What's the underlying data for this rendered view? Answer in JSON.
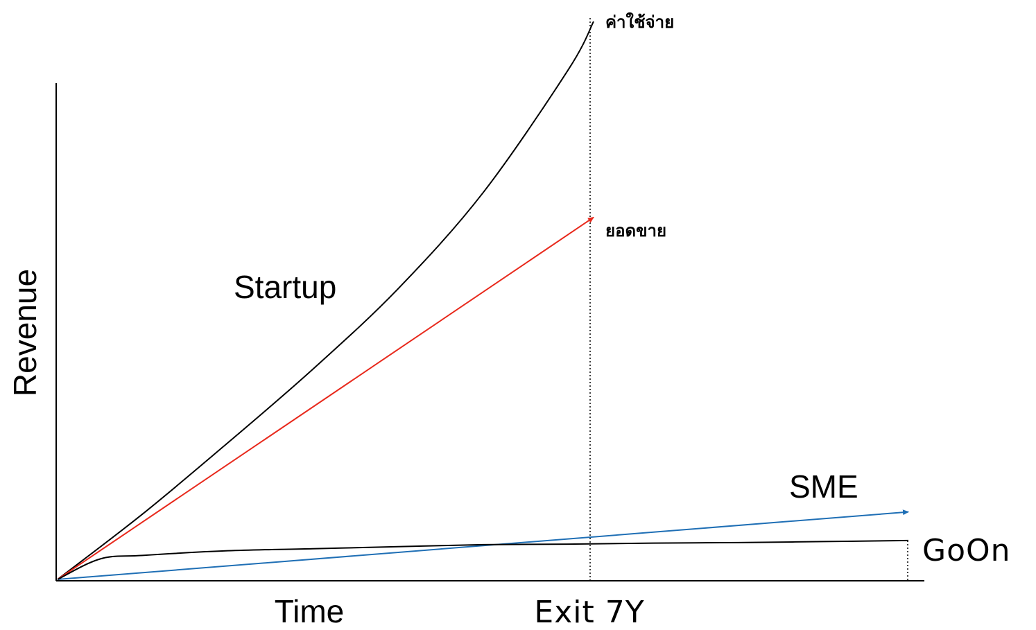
{
  "chart_data": {
    "type": "line",
    "xlabel": "Time",
    "ylabel": "Revenue",
    "xlim": [
      0,
      10
    ],
    "ylim": [
      0,
      10
    ],
    "grid": false,
    "markers": [
      {
        "label": "Exit 7Y",
        "x": 6.3,
        "style": "dotted"
      },
      {
        "label": "",
        "x": 10,
        "style": "dotted"
      }
    ],
    "series": [
      {
        "name": "ค่าใช้จ่าย",
        "color": "#000000",
        "points": [
          [
            0,
            0
          ],
          [
            1,
            1.28
          ],
          [
            2,
            2.67
          ],
          [
            3,
            4.11
          ],
          [
            4,
            5.68
          ],
          [
            5,
            7.56
          ],
          [
            6,
            9.96
          ],
          [
            6.3,
            10.91
          ]
        ]
      },
      {
        "name": "ยอดขาย",
        "color": "#e8291c",
        "arrow": true,
        "points": [
          [
            0,
            0
          ],
          [
            6.3,
            7.08
          ]
        ]
      },
      {
        "name": "SME",
        "color": "#1f6fb5",
        "arrow": true,
        "points": [
          [
            0,
            0
          ],
          [
            10,
            1.32
          ]
        ]
      },
      {
        "name": "GoOn",
        "color": "#000000",
        "points": [
          [
            0,
            0
          ],
          [
            0.5,
            0.4
          ],
          [
            1,
            0.47
          ],
          [
            2,
            0.56
          ],
          [
            3,
            0.6
          ],
          [
            4,
            0.64
          ],
          [
            5,
            0.68
          ],
          [
            6,
            0.69
          ],
          [
            7,
            0.71
          ],
          [
            8,
            0.72
          ],
          [
            9,
            0.74
          ],
          [
            10,
            0.76
          ]
        ]
      }
    ],
    "annotations": [
      {
        "text": "Startup",
        "x": 2.1,
        "y": 5.5
      },
      {
        "text": "SME",
        "x": 8.6,
        "y": 1.75
      }
    ]
  }
}
